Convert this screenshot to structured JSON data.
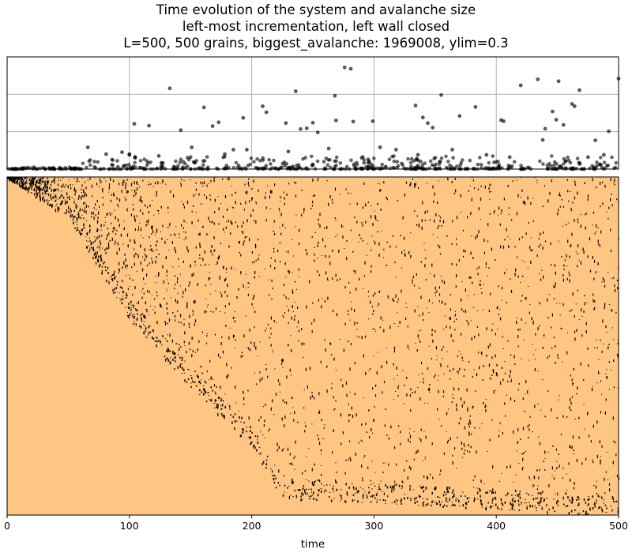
{
  "title_lines": [
    "Time evolution of the system and avalanche size",
    "left-most incrementation, left wall closed",
    "L=500, 500 grains, biggest_avalanche: 1969008, ylim=0.3"
  ],
  "colors": {
    "background_fill": "#fec682",
    "mark": "#000000",
    "grid": "#b0b0b0",
    "scatter": "#000000"
  },
  "chart_data": [
    {
      "type": "scatter",
      "title": "",
      "xlabel": "",
      "ylabel": "",
      "xlim": [
        0,
        500
      ],
      "ylim": [
        0,
        0.3
      ],
      "grid": true,
      "tick_labels_shown": false,
      "x_ticks": [
        0,
        100,
        200,
        300,
        400,
        500
      ],
      "y_grid": [
        0.1,
        0.2
      ],
      "points": [
        [
          66,
          0.058
        ],
        [
          81,
          0.04
        ],
        [
          94,
          0.045
        ],
        [
          100,
          0.04
        ],
        [
          100,
          0.038
        ],
        [
          104,
          0.121
        ],
        [
          116,
          0.116
        ],
        [
          133,
          0.216
        ],
        [
          142,
          0.104
        ],
        [
          151,
          0.058
        ],
        [
          161,
          0.165
        ],
        [
          168,
          0.115
        ],
        [
          173,
          0.125
        ],
        [
          193,
          0.137
        ],
        [
          196,
          0.052
        ],
        [
          209,
          0.168
        ],
        [
          212,
          0.152
        ],
        [
          228,
          0.123
        ],
        [
          236,
          0.208
        ],
        [
          240,
          0.107
        ],
        [
          245,
          0.109
        ],
        [
          250,
          0.124
        ],
        [
          254,
          0.098
        ],
        [
          268,
          0.196
        ],
        [
          269,
          0.13
        ],
        [
          276,
          0.272
        ],
        [
          281,
          0.268
        ],
        [
          283,
          0.127
        ],
        [
          299,
          0.128
        ],
        [
          305,
          0.058
        ],
        [
          318,
          0.052
        ],
        [
          334,
          0.17
        ],
        [
          340,
          0.138
        ],
        [
          344,
          0.123
        ],
        [
          348,
          0.111
        ],
        [
          355,
          0.198
        ],
        [
          370,
          0.142
        ],
        [
          383,
          0.166
        ],
        [
          404,
          0.131
        ],
        [
          406,
          0.128
        ],
        [
          420,
          0.224
        ],
        [
          434,
          0.24
        ],
        [
          440,
          0.108
        ],
        [
          446,
          0.154
        ],
        [
          449,
          0.132
        ],
        [
          455,
          0.118
        ],
        [
          451,
          0.235
        ],
        [
          462,
          0.174
        ],
        [
          464,
          0.168
        ],
        [
          468,
          0.211
        ],
        [
          481,
          0.077
        ],
        [
          492,
          0.101
        ],
        [
          500,
          0.242
        ],
        [
          488,
          0.038
        ],
        [
          475,
          0.032
        ],
        [
          438,
          0.078
        ],
        [
          411,
          0.032
        ],
        [
          392,
          0.038
        ],
        [
          364,
          0.052
        ],
        [
          336,
          0.038
        ],
        [
          290,
          0.03
        ],
        [
          263,
          0.055
        ],
        [
          230,
          0.047
        ],
        [
          185,
          0.052
        ],
        [
          178,
          0.04
        ],
        [
          150,
          0.032
        ],
        [
          124,
          0.035
        ]
      ],
      "baseline_clusters": "many near-zero avalanche points along y≈0 to 0.03 across the full time range"
    },
    {
      "type": "heatmap",
      "title": "",
      "xlabel": "time",
      "ylabel": "",
      "xlim": [
        0,
        500
      ],
      "x_ticks": [
        0,
        100,
        200,
        300,
        400,
        500
      ],
      "description_of_values": "background cells at level 0, sparse cells at a higher level; the occupied region spreads from the top-left corner to the lower right over time",
      "front": [
        [
          0,
          0.0
        ],
        [
          50,
          0.12
        ],
        [
          100,
          0.42
        ],
        [
          150,
          0.62
        ],
        [
          200,
          0.8
        ],
        [
          225,
          0.95
        ],
        [
          500,
          1.0
        ]
      ]
    }
  ]
}
